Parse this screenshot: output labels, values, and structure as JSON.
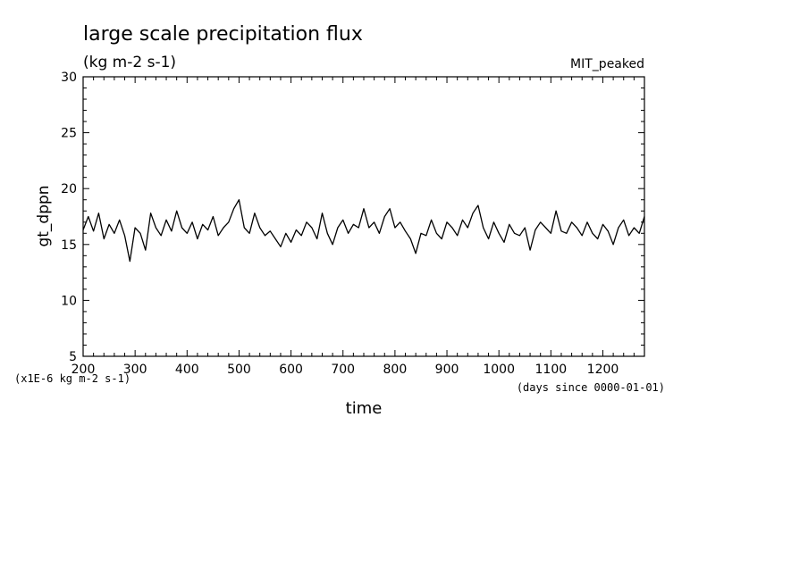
{
  "chart_data": {
    "type": "line",
    "title": "large scale precipitation flux",
    "subtitle": "(kg m-2 s-1)",
    "annotation_right": "MIT_peaked",
    "xlabel": "time",
    "x_units": "(days since 0000-01-01)",
    "ylabel": "gt_dppn",
    "y_units": "(x1E-6 kg m-2 s-1)",
    "xlim": [
      200,
      1280
    ],
    "ylim": [
      5,
      30
    ],
    "x_ticks": [
      200,
      300,
      400,
      500,
      600,
      700,
      800,
      900,
      1000,
      1100,
      1200
    ],
    "y_ticks": [
      5,
      10,
      15,
      20,
      25,
      30
    ],
    "grid": false,
    "line_color": "#000000",
    "series": [
      {
        "x": [
          200,
          210,
          220,
          230,
          240,
          250,
          260,
          270,
          280,
          290,
          300,
          310,
          320,
          330,
          340,
          350,
          360,
          370,
          380,
          390,
          400,
          410,
          420,
          430,
          440,
          450,
          460,
          470,
          480,
          490,
          500,
          510,
          520,
          530,
          540,
          550,
          560,
          570,
          580,
          590,
          600,
          610,
          620,
          630,
          640,
          650,
          660,
          670,
          680,
          690,
          700,
          710,
          720,
          730,
          740,
          750,
          760,
          770,
          780,
          790,
          800,
          810,
          820,
          830,
          840,
          850,
          860,
          870,
          880,
          890,
          900,
          910,
          920,
          930,
          940,
          950,
          960,
          970,
          980,
          990,
          1000,
          1010,
          1020,
          1030,
          1040,
          1050,
          1060,
          1070,
          1080,
          1090,
          1100,
          1110,
          1120,
          1130,
          1140,
          1150,
          1160,
          1170,
          1180,
          1190,
          1200,
          1210,
          1220,
          1230,
          1240,
          1250,
          1260,
          1270,
          1280
        ],
        "values": [
          16.3,
          17.5,
          16.2,
          17.8,
          15.5,
          16.8,
          16.0,
          17.2,
          15.8,
          13.5,
          16.5,
          16.0,
          14.5,
          17.8,
          16.5,
          15.8,
          17.2,
          16.2,
          18.0,
          16.5,
          16.0,
          17.0,
          15.5,
          16.8,
          16.3,
          17.5,
          15.8,
          16.5,
          17.0,
          18.2,
          19.0,
          16.5,
          16.0,
          17.8,
          16.5,
          15.8,
          16.2,
          15.5,
          14.8,
          16.0,
          15.2,
          16.3,
          15.8,
          17.0,
          16.5,
          15.5,
          17.8,
          16.0,
          15.0,
          16.5,
          17.2,
          16.0,
          16.8,
          16.5,
          18.2,
          16.5,
          17.0,
          16.0,
          17.5,
          18.2,
          16.5,
          17.0,
          16.2,
          15.5,
          14.2,
          16.0,
          15.8,
          17.2,
          16.0,
          15.5,
          17.0,
          16.5,
          15.8,
          17.2,
          16.5,
          17.8,
          18.5,
          16.5,
          15.5,
          17.0,
          16.0,
          15.2,
          16.8,
          16.0,
          15.8,
          16.5,
          14.5,
          16.3,
          17.0,
          16.5,
          16.0,
          18.0,
          16.2,
          16.0,
          17.0,
          16.5,
          15.8,
          17.0,
          16.0,
          15.5,
          16.8,
          16.2,
          15.0,
          16.5,
          17.2,
          15.8,
          16.5,
          16.0,
          17.5
        ]
      }
    ]
  }
}
